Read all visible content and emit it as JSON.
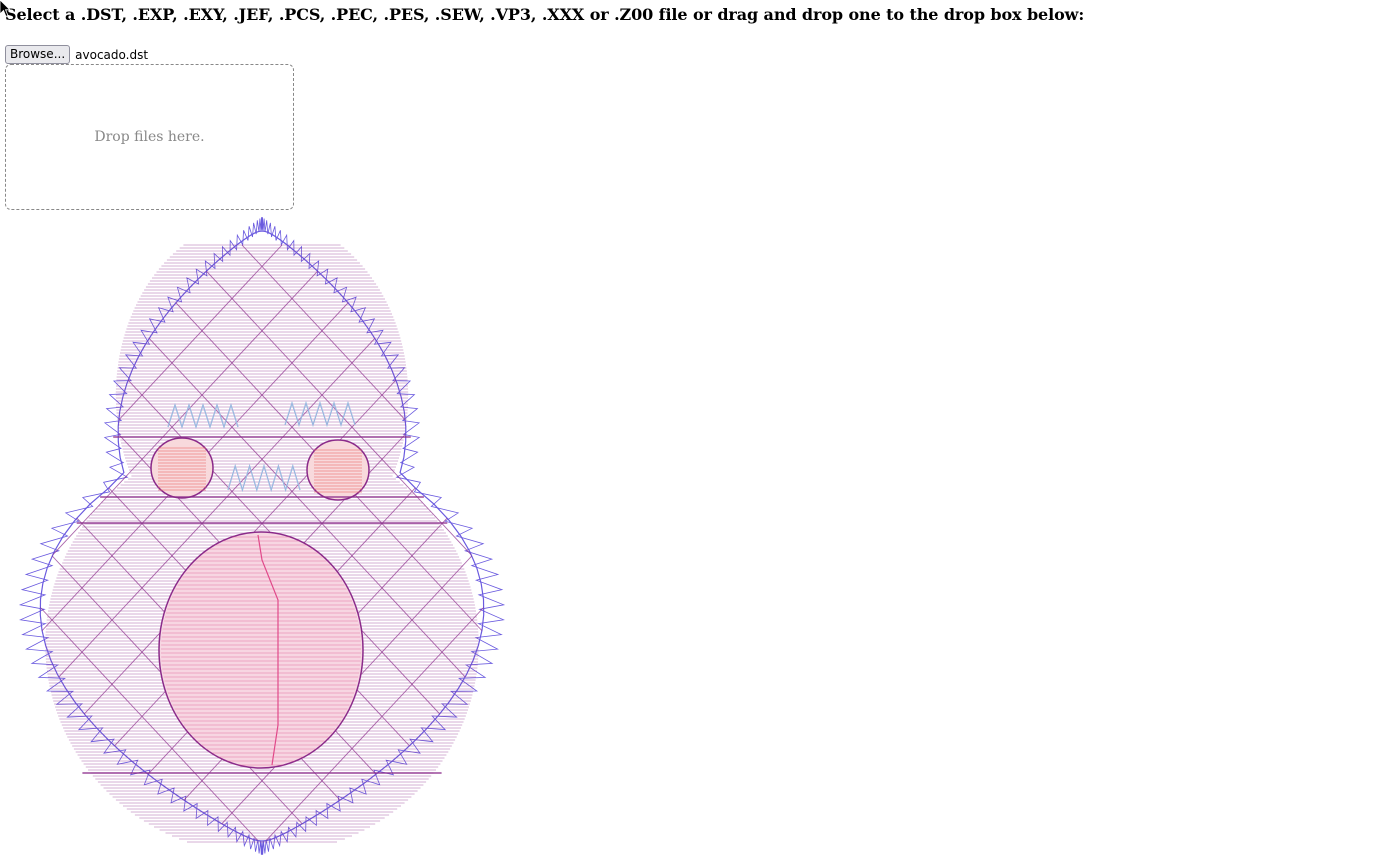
{
  "page": {
    "heading": "Select a .DST, .EXP, .EXY, .JEF, .PCS, .PEC, .PES, .SEW, .VP3, .XXX or .Z00 file or drag and drop one to the drop box below:"
  },
  "file_input": {
    "browse_label": "Browse...",
    "file_name": "avocado.dst"
  },
  "drop_box": {
    "label": "Drop files here."
  },
  "colors": {
    "outer_ring": "#6a5adf",
    "body_fill": "#8a2a8a",
    "belly": "#e04a8a",
    "cheeks": "#e86a6a",
    "eyes": "#9ab8e0"
  }
}
